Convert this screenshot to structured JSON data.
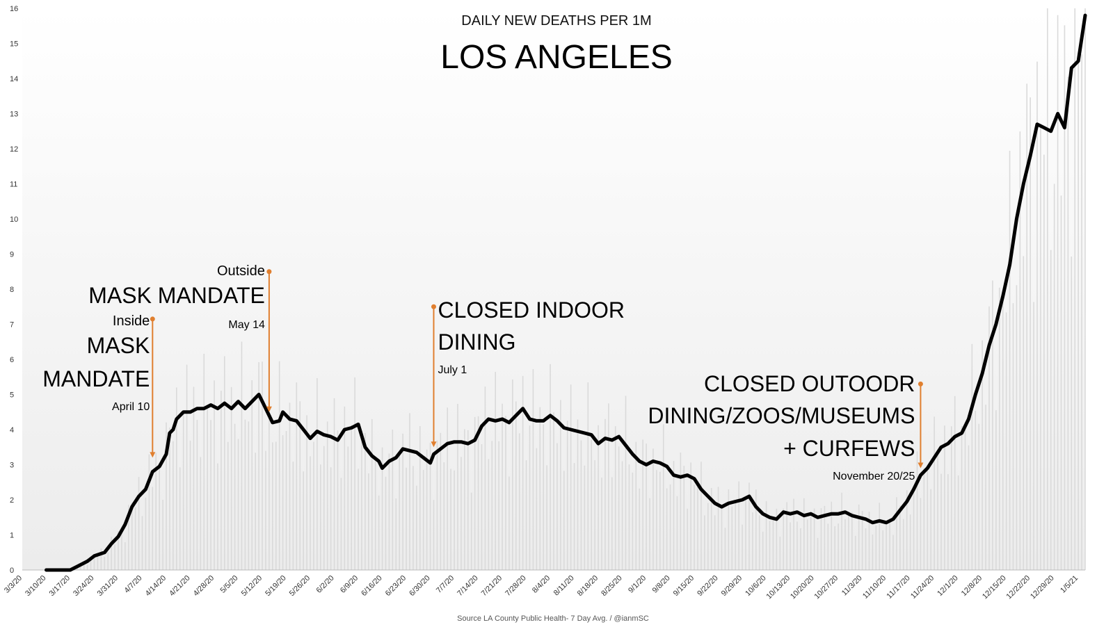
{
  "colors": {
    "line": "#000000",
    "bars": "#dadada",
    "annotation": "#e07f2f",
    "gradient_top": "#ffffff",
    "gradient_bottom": "#ececec"
  },
  "chart_data": {
    "type": "line",
    "title": "LOS ANGELES",
    "subtitle": "DAILY NEW DEATHS PER 1M",
    "source": "Source LA County Public Health- 7 Day Avg. / @ianmSC",
    "xlabel": "",
    "ylabel": "",
    "ylim": [
      0,
      16
    ],
    "yticks": [
      "0",
      "1",
      "2",
      "3",
      "4",
      "5",
      "6",
      "7",
      "8",
      "9",
      "10",
      "11",
      "12",
      "13",
      "14",
      "15",
      "16"
    ],
    "x_start": "3/3/20",
    "x_end": "1/7/21",
    "xticks": [
      "3/3/20",
      "3/10/20",
      "3/17/20",
      "3/24/20",
      "3/31/20",
      "4/7/20",
      "4/14/20",
      "4/21/20",
      "4/28/20",
      "5/5/20",
      "5/12/20",
      "5/19/20",
      "5/26/20",
      "6/2/20",
      "6/9/20",
      "6/16/20",
      "6/23/20",
      "6/30/20",
      "7/7/20",
      "7/14/20",
      "7/21/20",
      "7/28/20",
      "8/4/20",
      "8/11/20",
      "8/18/20",
      "8/25/20",
      "9/1/20",
      "9/8/20",
      "9/15/20",
      "9/22/20",
      "9/29/20",
      "10/6/20",
      "10/13/20",
      "10/20/20",
      "10/27/20",
      "11/3/20",
      "11/10/20",
      "11/17/20",
      "11/24/20",
      "12/1/20",
      "12/8/20",
      "12/15/20",
      "12/22/20",
      "12/29/20",
      "1/5/21"
    ],
    "grid": false,
    "legend": "none",
    "series": [
      {
        "style": "line",
        "points": [
          [
            "3/10/20",
            0
          ],
          [
            "3/17/20",
            0
          ],
          [
            "3/19/20",
            0.1
          ],
          [
            "3/22/20",
            0.25
          ],
          [
            "3/24/20",
            0.4
          ],
          [
            "3/27/20",
            0.5
          ],
          [
            "3/29/20",
            0.75
          ],
          [
            "3/31/20",
            0.95
          ],
          [
            "4/2/20",
            1.3
          ],
          [
            "4/4/20",
            1.8
          ],
          [
            "4/6/20",
            2.1
          ],
          [
            "4/8/20",
            2.3
          ],
          [
            "4/10/20",
            2.8
          ],
          [
            "4/12/20",
            2.95
          ],
          [
            "4/14/20",
            3.3
          ],
          [
            "4/15/20",
            3.9
          ],
          [
            "4/16/20",
            4.0
          ],
          [
            "4/17/20",
            4.3
          ],
          [
            "4/19/20",
            4.5
          ],
          [
            "4/21/20",
            4.5
          ],
          [
            "4/23/20",
            4.6
          ],
          [
            "4/25/20",
            4.6
          ],
          [
            "4/27/20",
            4.7
          ],
          [
            "4/29/20",
            4.6
          ],
          [
            "5/1/20",
            4.75
          ],
          [
            "5/3/20",
            4.6
          ],
          [
            "5/5/20",
            4.8
          ],
          [
            "5/7/20",
            4.6
          ],
          [
            "5/9/20",
            4.8
          ],
          [
            "5/11/20",
            5.0
          ],
          [
            "5/13/20",
            4.6
          ],
          [
            "5/15/20",
            4.2
          ],
          [
            "5/17/20",
            4.25
          ],
          [
            "5/18/20",
            4.5
          ],
          [
            "5/20/20",
            4.3
          ],
          [
            "5/22/20",
            4.25
          ],
          [
            "5/24/20",
            4.0
          ],
          [
            "5/26/20",
            3.75
          ],
          [
            "5/28/20",
            3.95
          ],
          [
            "5/30/20",
            3.85
          ],
          [
            "6/1/20",
            3.8
          ],
          [
            "6/3/20",
            3.7
          ],
          [
            "6/5/20",
            4.0
          ],
          [
            "6/7/20",
            4.05
          ],
          [
            "6/9/20",
            4.15
          ],
          [
            "6/11/20",
            3.5
          ],
          [
            "6/13/20",
            3.25
          ],
          [
            "6/15/20",
            3.1
          ],
          [
            "6/16/20",
            2.9
          ],
          [
            "6/18/20",
            3.1
          ],
          [
            "6/20/20",
            3.2
          ],
          [
            "6/22/20",
            3.45
          ],
          [
            "6/24/20",
            3.4
          ],
          [
            "6/26/20",
            3.35
          ],
          [
            "6/28/20",
            3.2
          ],
          [
            "6/30/20",
            3.05
          ],
          [
            "7/1/20",
            3.3
          ],
          [
            "7/3/20",
            3.45
          ],
          [
            "7/5/20",
            3.6
          ],
          [
            "7/7/20",
            3.65
          ],
          [
            "7/9/20",
            3.65
          ],
          [
            "7/11/20",
            3.6
          ],
          [
            "7/13/20",
            3.7
          ],
          [
            "7/15/20",
            4.1
          ],
          [
            "7/17/20",
            4.3
          ],
          [
            "7/19/20",
            4.25
          ],
          [
            "7/21/20",
            4.3
          ],
          [
            "7/23/20",
            4.2
          ],
          [
            "7/25/20",
            4.4
          ],
          [
            "7/27/20",
            4.6
          ],
          [
            "7/29/20",
            4.3
          ],
          [
            "7/31/20",
            4.25
          ],
          [
            "8/2/20",
            4.25
          ],
          [
            "8/4/20",
            4.4
          ],
          [
            "8/6/20",
            4.25
          ],
          [
            "8/8/20",
            4.05
          ],
          [
            "8/10/20",
            4.0
          ],
          [
            "8/12/20",
            3.95
          ],
          [
            "8/14/20",
            3.9
          ],
          [
            "8/16/20",
            3.85
          ],
          [
            "8/18/20",
            3.6
          ],
          [
            "8/20/20",
            3.75
          ],
          [
            "8/22/20",
            3.7
          ],
          [
            "8/24/20",
            3.8
          ],
          [
            "8/26/20",
            3.55
          ],
          [
            "8/28/20",
            3.3
          ],
          [
            "8/30/20",
            3.1
          ],
          [
            "9/1/20",
            3.0
          ],
          [
            "9/3/20",
            3.1
          ],
          [
            "9/5/20",
            3.05
          ],
          [
            "9/7/20",
            2.95
          ],
          [
            "9/9/20",
            2.7
          ],
          [
            "9/11/20",
            2.65
          ],
          [
            "9/13/20",
            2.7
          ],
          [
            "9/15/20",
            2.6
          ],
          [
            "9/17/20",
            2.3
          ],
          [
            "9/19/20",
            2.1
          ],
          [
            "9/21/20",
            1.9
          ],
          [
            "9/23/20",
            1.8
          ],
          [
            "9/25/20",
            1.9
          ],
          [
            "9/27/20",
            1.95
          ],
          [
            "9/29/20",
            2.0
          ],
          [
            "10/1/20",
            2.1
          ],
          [
            "10/3/20",
            1.8
          ],
          [
            "10/5/20",
            1.6
          ],
          [
            "10/7/20",
            1.5
          ],
          [
            "10/9/20",
            1.45
          ],
          [
            "10/11/20",
            1.65
          ],
          [
            "10/13/20",
            1.6
          ],
          [
            "10/15/20",
            1.65
          ],
          [
            "10/17/20",
            1.55
          ],
          [
            "10/19/20",
            1.6
          ],
          [
            "10/21/20",
            1.5
          ],
          [
            "10/23/20",
            1.55
          ],
          [
            "10/25/20",
            1.6
          ],
          [
            "10/27/20",
            1.6
          ],
          [
            "10/29/20",
            1.65
          ],
          [
            "10/31/20",
            1.55
          ],
          [
            "11/2/20",
            1.5
          ],
          [
            "11/4/20",
            1.45
          ],
          [
            "11/6/20",
            1.35
          ],
          [
            "11/8/20",
            1.4
          ],
          [
            "11/10/20",
            1.35
          ],
          [
            "11/12/20",
            1.45
          ],
          [
            "11/14/20",
            1.7
          ],
          [
            "11/16/20",
            1.95
          ],
          [
            "11/18/20",
            2.3
          ],
          [
            "11/20/20",
            2.7
          ],
          [
            "11/22/20",
            2.9
          ],
          [
            "11/24/20",
            3.2
          ],
          [
            "11/26/20",
            3.5
          ],
          [
            "11/28/20",
            3.6
          ],
          [
            "11/30/20",
            3.8
          ],
          [
            "12/2/20",
            3.9
          ],
          [
            "12/4/20",
            4.3
          ],
          [
            "12/6/20",
            5.0
          ],
          [
            "12/8/20",
            5.6
          ],
          [
            "12/10/20",
            6.4
          ],
          [
            "12/12/20",
            7.0
          ],
          [
            "12/14/20",
            7.8
          ],
          [
            "12/16/20",
            8.7
          ],
          [
            "12/18/20",
            10.0
          ],
          [
            "12/20/20",
            11.0
          ],
          [
            "12/22/20",
            11.8
          ],
          [
            "12/24/20",
            12.7
          ],
          [
            "12/26/20",
            12.6
          ],
          [
            "12/28/20",
            12.5
          ],
          [
            "12/30/20",
            13.0
          ],
          [
            "1/1/21",
            12.6
          ],
          [
            "1/3/21",
            14.3
          ],
          [
            "1/5/21",
            14.5
          ],
          [
            "1/7/21",
            15.8
          ]
        ]
      }
    ],
    "annotations": [
      {
        "id": "inside-mask",
        "label_top": "Inside",
        "title_lines": [
          "MASK",
          "MANDATE"
        ],
        "date_label": "April 10",
        "x": "4/10/20",
        "y_from": 7.15,
        "y_to": 3.2
      },
      {
        "id": "outside-mask",
        "label_top": "Outside",
        "title_lines": [
          "MASK MANDATE"
        ],
        "date_label": "May 14",
        "x": "5/14/20",
        "y_from": 8.5,
        "y_to": 4.5
      },
      {
        "id": "indoor-dining",
        "label_top": "",
        "title_lines": [
          "CLOSED INDOOR",
          "DINING"
        ],
        "date_label": "July 1",
        "x": "7/1/20",
        "y_from": 7.5,
        "y_to": 3.5
      },
      {
        "id": "outdoor-dining",
        "label_top": "",
        "title_lines": [
          "CLOSED OUTOODR",
          "DINING/ZOOS/MUSEUMS",
          "+ CURFEWS"
        ],
        "date_label": "November 20/25",
        "x": "11/20/20",
        "y_from": 5.3,
        "y_to": 2.9
      }
    ]
  }
}
